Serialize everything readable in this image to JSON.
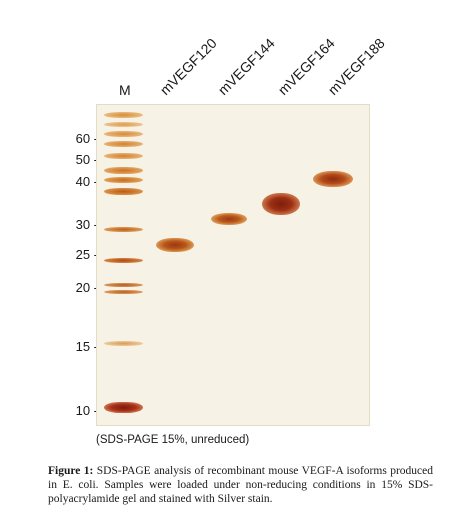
{
  "marker_label": "M",
  "lanes": [
    {
      "label": "mVEGF120"
    },
    {
      "label": "mVEGF144"
    },
    {
      "label": "mVEGF164"
    },
    {
      "label": "mVEGF188"
    }
  ],
  "mw_markers": [
    "60 -",
    "50 -",
    "40 -",
    "30 -",
    "25 -",
    "20 -",
    "15 -",
    "10 -"
  ],
  "gel_note": "(SDS-PAGE 15%, unreduced)",
  "caption": {
    "label": "Figure 1:",
    "text": " SDS-PAGE analysis of recombinant mouse VEGF-A isoforms produced in E. coli. Samples were loaded under non-reducing conditions in 15% SDS-polyacrylamide gel and stained with Silver stain."
  },
  "colors": {
    "gel_background": "#f7f2e6",
    "band_dark": "#8a2a10",
    "band_orange": "#c56a1c",
    "ladder_light": "#e3b06a"
  }
}
